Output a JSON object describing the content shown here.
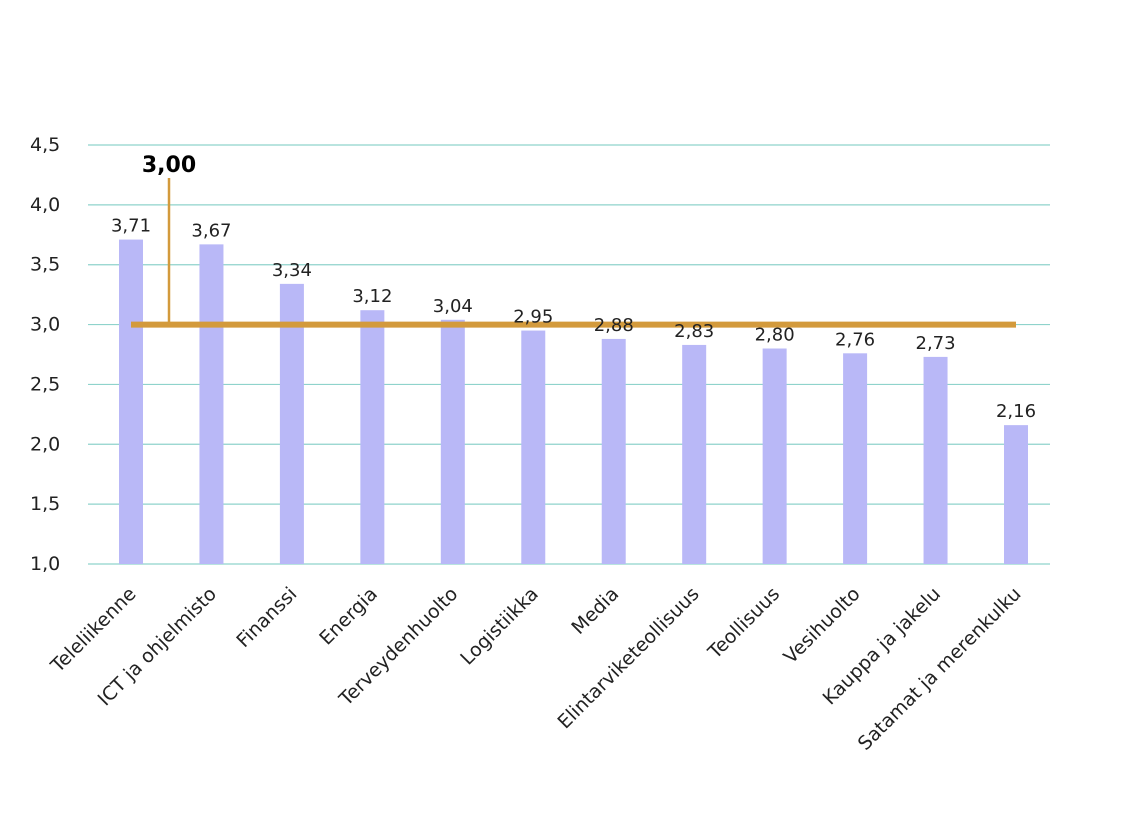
{
  "chart_data": {
    "type": "bar",
    "categories": [
      "Teleliikenne",
      "ICT ja ohjelmisto",
      "Finanssi",
      "Energia",
      "Terveydenhuolto",
      "Logistiikka",
      "Media",
      "Elintarviketeollisuus",
      "Teollisuus",
      "Vesihuolto",
      "Kauppa ja jakelu",
      "Satamat ja merenkulku"
    ],
    "values": [
      3.71,
      3.67,
      3.34,
      3.12,
      3.04,
      2.95,
      2.88,
      2.83,
      2.8,
      2.76,
      2.73,
      2.16
    ],
    "value_labels": [
      "3,71",
      "3,67",
      "3,34",
      "3,12",
      "3,04",
      "2,95",
      "2,88",
      "2,83",
      "2,80",
      "2,76",
      "2,73",
      "2,16"
    ],
    "ylim": [
      1.0,
      4.5
    ],
    "yticks": [
      1.0,
      1.5,
      2.0,
      2.5,
      3.0,
      3.5,
      4.0,
      4.5
    ],
    "ytick_labels": [
      "1,0",
      "1,5",
      "2,0",
      "2,5",
      "3,0",
      "3,5",
      "4,0",
      "4,5"
    ],
    "reference_line": {
      "value": 3.0,
      "label": "3,00"
    },
    "grid": true,
    "colors": {
      "bar": "#b9b8f7",
      "reference": "#d39a3c",
      "grid": "#8fd3cc"
    }
  }
}
